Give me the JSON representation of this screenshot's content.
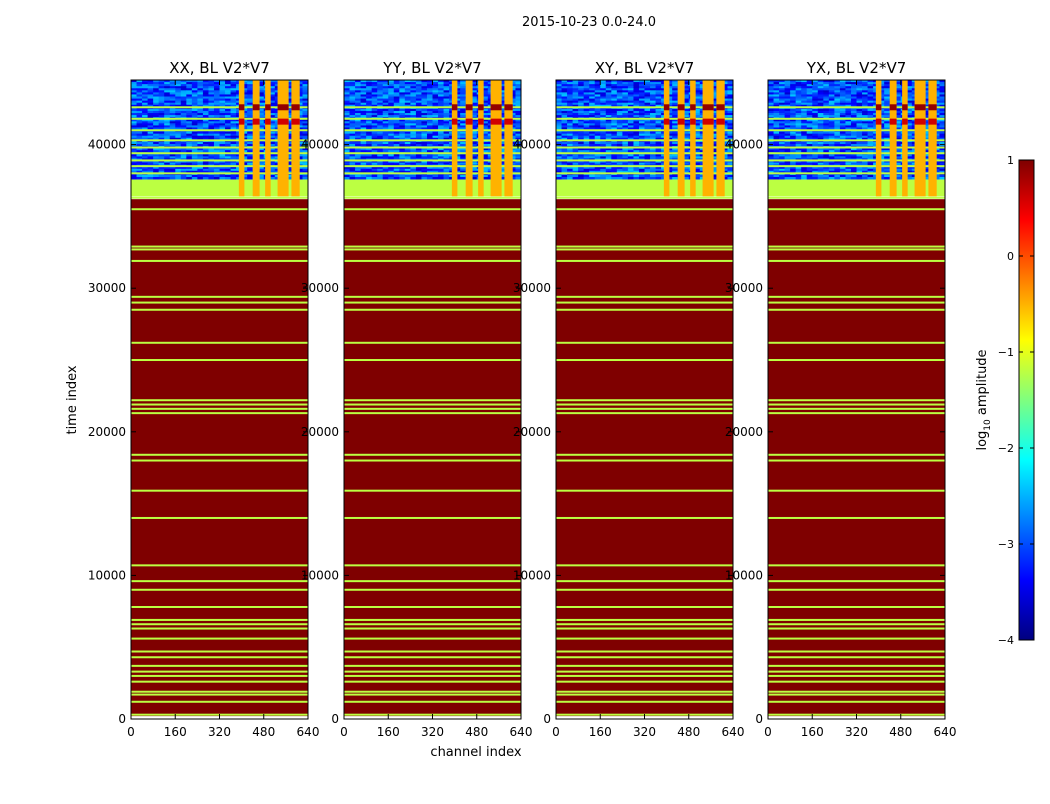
{
  "chart_data": {
    "type": "heatmap",
    "suptitle": "2015-10-23 0.0-24.0",
    "xlabel": "channel index",
    "ylabel": "time index",
    "xlim": [
      0,
      640
    ],
    "ylim": [
      0,
      44500
    ],
    "xticks": [
      0,
      160,
      320,
      480,
      640
    ],
    "yticks": [
      0,
      10000,
      20000,
      30000,
      40000
    ],
    "panels": [
      {
        "title": "XX, BL V2*V7",
        "name": "XX"
      },
      {
        "title": "YY, BL V2*V7",
        "name": "YY"
      },
      {
        "title": "XY, BL V2*V7",
        "name": "XY"
      },
      {
        "title": "YX, BL V2*V7",
        "name": "YX"
      }
    ],
    "colorbar": {
      "label": "log10 amplitude",
      "label_base": "log",
      "label_sub": "10",
      "label_rest": " amplitude",
      "range": [
        -4,
        1
      ],
      "ticks": [
        1,
        0,
        -1,
        -2,
        -3,
        -4
      ],
      "tick_labels": [
        "1",
        "0",
        "−1",
        "−2",
        "−3",
        "−4"
      ],
      "colormap": "jet",
      "cmap_stops": [
        "#00007f",
        "#0000ff",
        "#007fff",
        "#00ffff",
        "#7fff7f",
        "#ffff00",
        "#ff7f00",
        "#ff0000",
        "#7f0000"
      ]
    },
    "regions": {
      "saturated_time_range": [
        200,
        36200
      ],
      "saturated_value": 1,
      "band_value": -1.2,
      "block_time_range": [
        36400,
        37600
      ],
      "block_value": -1.2,
      "noise_time_range": [
        37600,
        44500
      ],
      "noise_value_range": [
        -3.6,
        -2.4
      ],
      "rfi_channels": [
        [
          390,
          410
        ],
        [
          440,
          465
        ],
        [
          485,
          505
        ],
        [
          530,
          570
        ],
        [
          580,
          610
        ]
      ],
      "rfi_value": -0.5
    },
    "band_rows": [
      300,
      1200,
      1700,
      1900,
      2600,
      3000,
      3300,
      3700,
      4300,
      4700,
      5600,
      6300,
      6600,
      6900,
      7800,
      9000,
      9600,
      10700,
      14000,
      15900,
      18000,
      18400,
      21300,
      21600,
      21900,
      22200,
      25000,
      26200,
      28500,
      29000,
      29400,
      31900,
      32700,
      32900,
      35500,
      36300
    ],
    "noise_hlines": [
      38000,
      38500,
      38900,
      39400,
      39800,
      40300,
      41000,
      41800,
      42600
    ]
  }
}
